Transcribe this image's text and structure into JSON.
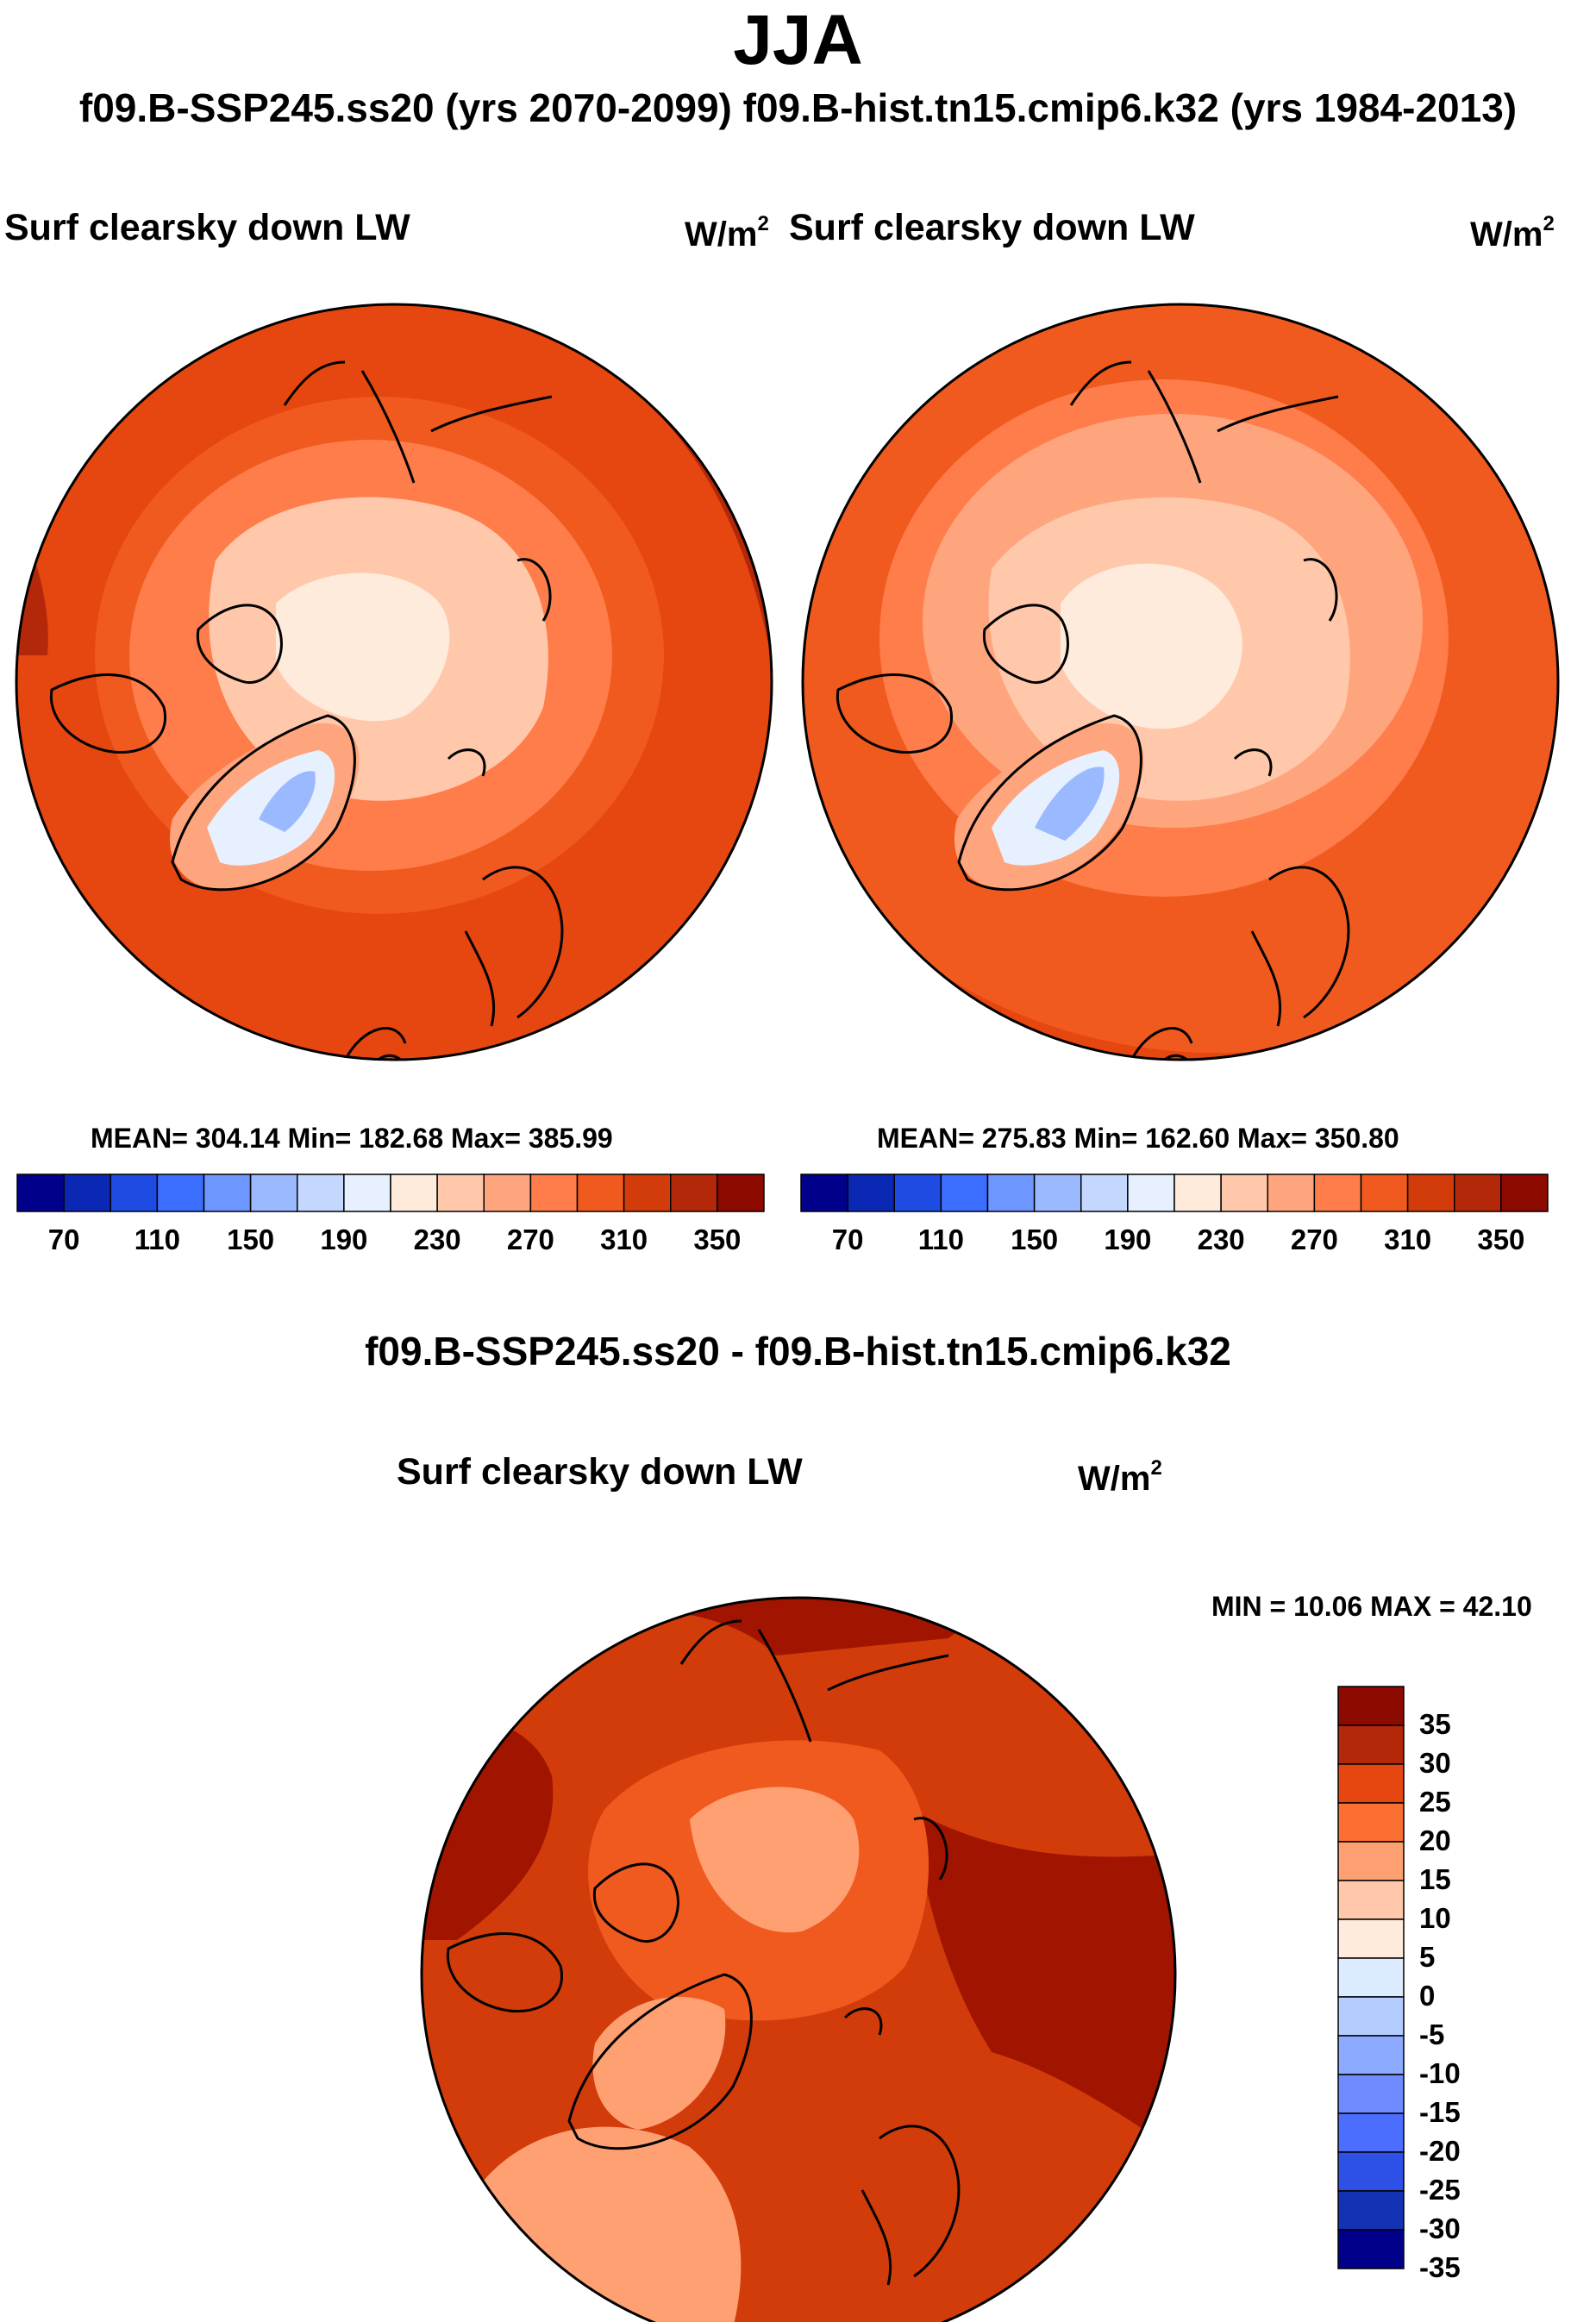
{
  "title": "JJA",
  "subtitle": "f09.B-SSP245.ss20 (yrs 2070-2099)  f09.B-hist.tn15.cmip6.k32 (yrs 1984-2013)",
  "panels": [
    {
      "case": "f09.B-SSP245.ss20",
      "years": "2070-2099",
      "variable": "Surf clearsky down LW",
      "units_base": "W/m",
      "units_exp": "2",
      "stats_text": "MEAN= 304.14  Min= 182.68  Max= 385.99",
      "mean": 304.14,
      "min": 182.68,
      "max": 385.99,
      "colorbar_labels": [
        "70",
        "110",
        "150",
        "190",
        "230",
        "270",
        "310",
        "350"
      ]
    },
    {
      "case": "f09.B-hist.tn15.cmip6.k32",
      "years": "1984-2013",
      "variable": "Surf clearsky down LW",
      "units_base": "W/m",
      "units_exp": "2",
      "stats_text": "MEAN= 275.83  Min= 162.60  Max= 350.80",
      "mean": 275.83,
      "min": 162.6,
      "max": 350.8,
      "colorbar_labels": [
        "70",
        "110",
        "150",
        "190",
        "230",
        "270",
        "310",
        "350"
      ]
    }
  ],
  "difference": {
    "title": "f09.B-SSP245.ss20 - f09.B-hist.tn15.cmip6.k32",
    "variable": "Surf clearsky down LW",
    "units_base": "W/m",
    "units_exp": "2",
    "minmax_text": "MIN =  10.06 MAX =  42.10",
    "min": 10.06,
    "max": 42.1,
    "colorbar_labels": [
      "35",
      "30",
      "25",
      "20",
      "15",
      "10",
      "5",
      "0",
      "-5",
      "-10",
      "-15",
      "-20",
      "-25",
      "-30",
      "-35"
    ]
  },
  "abs_palette": [
    "#00008b",
    "#0a28b4",
    "#1e4be1",
    "#3c6eff",
    "#6e96ff",
    "#9bb9ff",
    "#c3d7ff",
    "#e6f0ff",
    "#ffebdc",
    "#ffc8aa",
    "#ffa57d",
    "#ff7d4b",
    "#f05a1e",
    "#d23c0a",
    "#b4280a",
    "#8c0a00"
  ],
  "diff_palette": [
    "#8c0a00",
    "#b4280a",
    "#e6460f",
    "#fa6e32",
    "#ffa073",
    "#ffc8aa",
    "#ffebdc",
    "#dcebff",
    "#b4cdff",
    "#8caaff",
    "#6e8cff",
    "#4b6eff",
    "#2d50e6",
    "#1432b4",
    "#00008b"
  ],
  "map_colors": {
    "outer": "#e6460f",
    "ring2": "#f05a1e",
    "ring3": "#ff7d4b",
    "arctic": "#ffc8aa",
    "pole": "#ffebdc",
    "green_outer": "#ffa57d",
    "green_mid": "#e6f0ff",
    "green_inner": "#9bb9ff",
    "dark_edge": "#b4280a",
    "diff_bg": "#d23c0a",
    "diff_dark": "#a01400",
    "diff_mid": "#f05a1e",
    "diff_light": "#ffa073"
  }
}
